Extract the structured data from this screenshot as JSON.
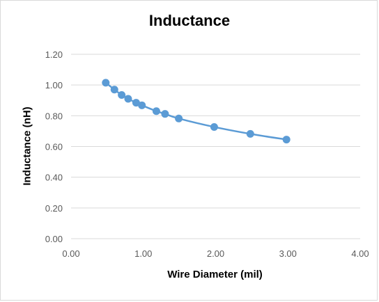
{
  "chart_data": {
    "type": "scatter",
    "title": "Inductance",
    "xlabel": "Wire Diameter (mil)",
    "ylabel": "Inductance (nH)",
    "xlim": [
      0,
      4
    ],
    "ylim": [
      0,
      1.2
    ],
    "x_ticks": [
      "0.00",
      "1.00",
      "2.00",
      "3.00",
      "4.00"
    ],
    "y_ticks": [
      "0.00",
      "0.20",
      "0.40",
      "0.60",
      "0.80",
      "1.00",
      "1.20"
    ],
    "grid": "horizontal",
    "legend": "none",
    "series": [
      {
        "color": "#5b9bd5",
        "smooth_line": true,
        "x": [
          0.48,
          0.6,
          0.7,
          0.79,
          0.9,
          0.98,
          1.18,
          1.3,
          1.49,
          1.98,
          2.48,
          2.98
        ],
        "y": [
          1.015,
          0.97,
          0.935,
          0.91,
          0.885,
          0.868,
          0.83,
          0.812,
          0.782,
          0.727,
          0.682,
          0.645
        ]
      }
    ]
  }
}
